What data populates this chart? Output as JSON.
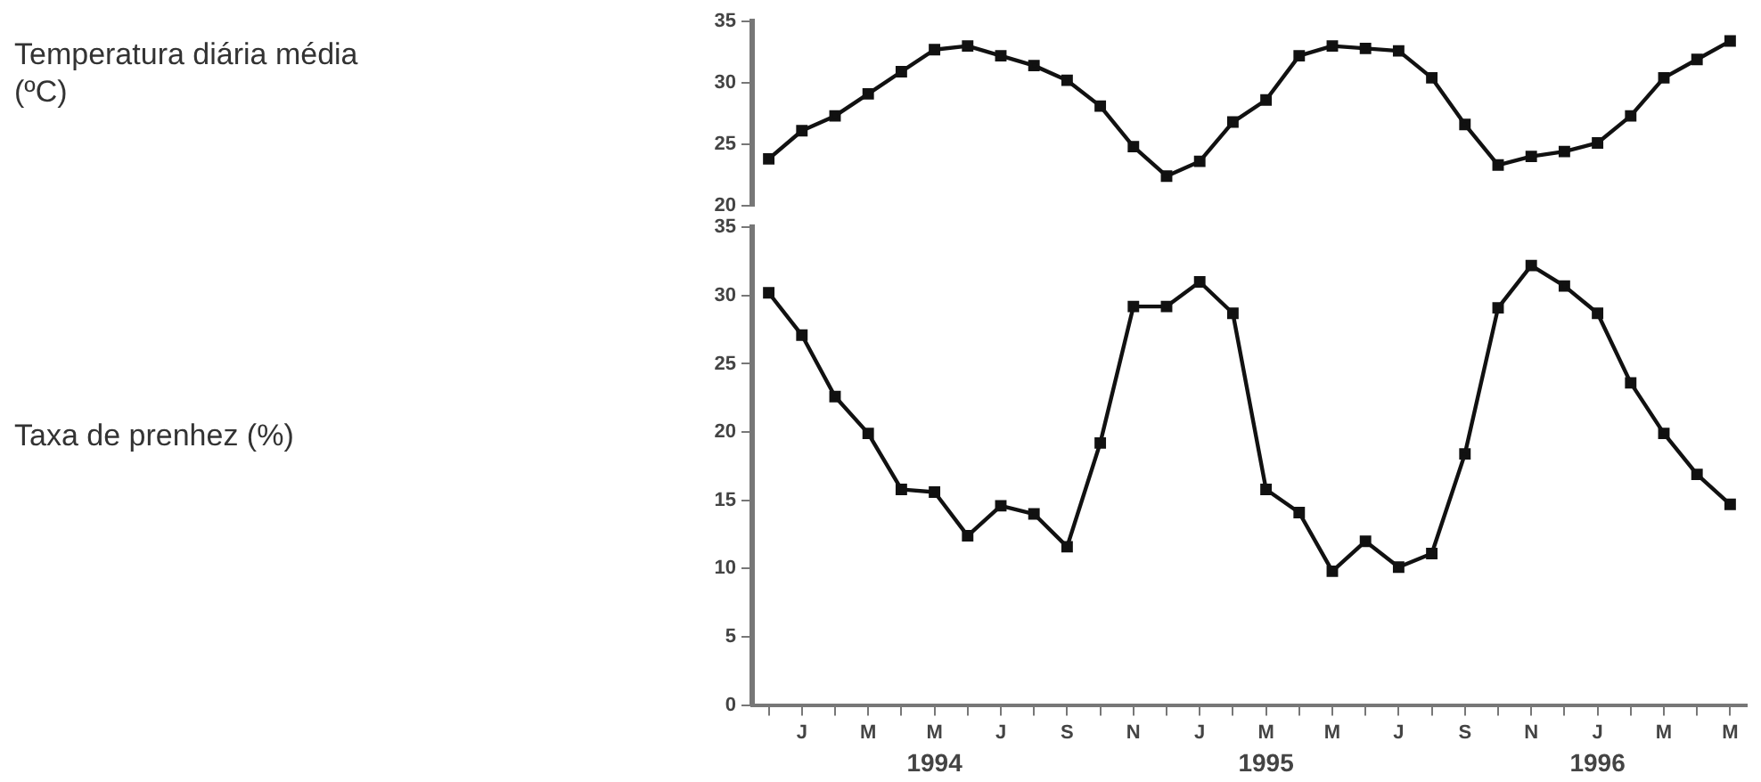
{
  "chart_data": [
    {
      "type": "line",
      "ylabel": "Temperatura diária média (ºC)",
      "categories": [
        null,
        null,
        null,
        null,
        null,
        null,
        null,
        null,
        null,
        null,
        null,
        null,
        null,
        null,
        null,
        null,
        null,
        null,
        null,
        null,
        null,
        null,
        null,
        null,
        null,
        null,
        null,
        null,
        null,
        null
      ],
      "series": [
        {
          "color": "#111111",
          "values": [
            23.8,
            26.1,
            27.3,
            29.1,
            30.9,
            32.7,
            33.0,
            32.2,
            31.4,
            30.2,
            28.1,
            24.8,
            22.4,
            23.6,
            26.8,
            28.6,
            32.2,
            33.0,
            32.8,
            32.6,
            30.4,
            26.6,
            23.3,
            24.0,
            24.4,
            25.1,
            27.3,
            30.4,
            31.9,
            33.4
          ]
        }
      ],
      "ylim": [
        20,
        35
      ],
      "yticks": [
        20,
        25,
        30,
        35
      ],
      "tick_labels": "y",
      "grid": false,
      "legend": false,
      "marker": "square",
      "line_style": "solid"
    },
    {
      "type": "line",
      "ylabel": "Taxa de prenhez (%)",
      "categories": [
        null,
        "J",
        null,
        "M",
        null,
        "M",
        null,
        "J",
        null,
        "S",
        null,
        "N",
        null,
        "J",
        null,
        "M",
        null,
        "M",
        null,
        "J",
        null,
        "S",
        null,
        "N",
        null,
        "J",
        null,
        "M",
        null,
        "M"
      ],
      "series": [
        {
          "color": "#111111",
          "values": [
            30.2,
            27.1,
            22.6,
            19.9,
            15.8,
            15.6,
            12.4,
            14.6,
            14.0,
            11.6,
            19.2,
            29.2,
            29.2,
            31.0,
            28.7,
            15.8,
            14.1,
            9.8,
            12.0,
            10.1,
            11.1,
            18.4,
            29.1,
            32.2,
            30.7,
            28.7,
            23.6,
            19.9,
            16.9,
            14.7
          ]
        }
      ],
      "ylim": [
        0,
        35
      ],
      "yticks": [
        0,
        5,
        10,
        15,
        20,
        25,
        30,
        35
      ],
      "grid": false,
      "legend": false,
      "marker": "square",
      "line_style": "solid",
      "annotations": [
        "1994",
        "1995",
        "1996"
      ]
    }
  ]
}
